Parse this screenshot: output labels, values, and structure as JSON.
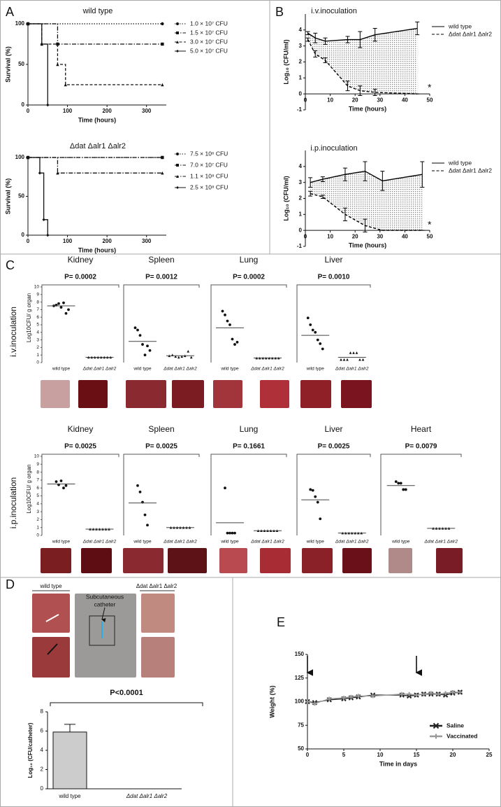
{
  "panel_labels": [
    "A",
    "B",
    "C",
    "D",
    "E"
  ],
  "photo_labels": {
    "left": "wild type",
    "right": "Δdat Δalr1 Δalr2",
    "catheter": [
      "Subcutaneous",
      "catheter"
    ]
  },
  "chart_data": [
    {
      "type": "step",
      "title": "wild type",
      "xlabel": "Time (hours)",
      "ylabel": "Survival (%)",
      "xlim": [
        0,
        350
      ],
      "xticks": [
        0,
        100,
        200,
        300
      ],
      "ylim": [
        0,
        100
      ],
      "yticks": [
        0,
        50,
        100
      ],
      "series": [
        {
          "name": "1.0 × 10⁷ CFU",
          "dash": "dotted",
          "marker": "circle",
          "x": [
            0,
            340
          ],
          "values": [
            100,
            100
          ]
        },
        {
          "name": "1.5 × 10⁷ CFU",
          "dash": "dashdot",
          "marker": "square",
          "x": [
            0,
            75,
            340
          ],
          "values": [
            100,
            75,
            75
          ]
        },
        {
          "name": "3.0 × 10⁷ CFU",
          "dash": "dashed",
          "marker": "triangle",
          "x": [
            0,
            35,
            75,
            95,
            340
          ],
          "values": [
            100,
            75,
            50,
            25,
            25
          ]
        },
        {
          "name": "5.0 × 10⁷ CFU",
          "dash": "solid",
          "marker": "diamond",
          "x": [
            0,
            35,
            50
          ],
          "values": [
            100,
            75,
            0
          ]
        }
      ]
    },
    {
      "type": "step",
      "title": "Δdat Δalr1 Δalr2",
      "xlabel": "Time (hours)",
      "ylabel": "Survival (%)",
      "xlim": [
        0,
        350
      ],
      "xticks": [
        0,
        100,
        200,
        300
      ],
      "ylim": [
        0,
        100
      ],
      "yticks": [
        0,
        50,
        100
      ],
      "series": [
        {
          "name": "7.5 × 10⁶ CFU",
          "dash": "dotted",
          "marker": "circle",
          "x": [
            0,
            340
          ],
          "values": [
            100,
            100
          ]
        },
        {
          "name": "7.0 × 10⁷ CFU",
          "dash": "dashdot",
          "marker": "square",
          "x": [
            0,
            340
          ],
          "values": [
            100,
            100
          ]
        },
        {
          "name": "1.1 × 10⁸ CFU",
          "dash": "dashdot",
          "marker": "triangle",
          "x": [
            0,
            75,
            340
          ],
          "values": [
            100,
            80,
            80
          ]
        },
        {
          "name": "2.5 × 10⁸ CFU",
          "dash": "solid",
          "marker": "diamond",
          "x": [
            0,
            30,
            40,
            50
          ],
          "values": [
            100,
            80,
            20,
            0
          ]
        }
      ]
    },
    {
      "type": "line",
      "title": "i.v.inoculation",
      "xlabel": "Time (hours)",
      "ylabel": "Log₁₀ (CFU/ml)",
      "annotation": "*",
      "fill_between": true,
      "xlim": [
        0,
        50
      ],
      "xticks": [
        0,
        10,
        20,
        30,
        40,
        50
      ],
      "ylim": [
        -1,
        5
      ],
      "yticks": [
        -1,
        0,
        1,
        2,
        3,
        4
      ],
      "x": [
        1,
        4,
        8,
        17,
        22,
        28,
        45
      ],
      "series": [
        {
          "name": "wild type",
          "color": "#000000",
          "dash": "solid",
          "values": [
            3.8,
            3.5,
            3.3,
            3.4,
            3.4,
            3.7,
            4.1
          ],
          "errors": [
            0.1,
            0.3,
            0.2,
            0.2,
            0.5,
            0.4,
            0.4
          ]
        },
        {
          "name": "Δdat Δalr1 Δalr2",
          "color": "#000000",
          "dash": "dashed",
          "values": [
            3.4,
            2.5,
            2.1,
            0.5,
            0.2,
            0.1,
            0
          ],
          "errors": [
            0.1,
            0.2,
            0.15,
            0.3,
            0.3,
            0.2,
            0
          ]
        }
      ]
    },
    {
      "type": "line",
      "title": "i.p.inoculation",
      "xlabel": "Time (hours)",
      "ylabel": "Log₁₀ (CFU/ml)",
      "annotation": "*",
      "fill_between": true,
      "xlim": [
        0,
        50
      ],
      "xticks": [
        0,
        10,
        20,
        30,
        40,
        50
      ],
      "ylim": [
        -1,
        5
      ],
      "yticks": [
        -1,
        0,
        1,
        2,
        3,
        4
      ],
      "x": [
        2,
        7,
        16,
        24,
        31,
        47
      ],
      "series": [
        {
          "name": "wild type",
          "color": "#000000",
          "dash": "solid",
          "values": [
            3.0,
            3.2,
            3.5,
            3.7,
            3.1,
            3.5
          ],
          "errors": [
            0.3,
            0.15,
            0.4,
            0.6,
            0.6,
            0.8
          ]
        },
        {
          "name": "Δdat Δalr1 Δalr2",
          "color": "#000000",
          "dash": "dashed",
          "values": [
            2.3,
            2.1,
            1.0,
            0.3,
            0,
            0
          ],
          "errors": [
            0.15,
            0.1,
            0.4,
            0.4,
            0,
            0
          ]
        }
      ]
    },
    {
      "type": "dot",
      "title": "Kidney",
      "annotation": "P= 0.0002",
      "row_label": "i.v.inoculation",
      "ylabel": "Log10CFU/ g organ",
      "ylim": [
        0,
        10
      ],
      "yticks": [
        0,
        1,
        2,
        3,
        4,
        5,
        6,
        7,
        8,
        9,
        10
      ],
      "categories": [
        "wild type",
        "Δdat Δalr1 Δalr2"
      ],
      "values": [
        [
          7.5,
          7.6,
          7.8,
          7.3,
          7.9,
          6.5,
          7.0
        ],
        [
          0.7,
          0.7,
          0.7,
          0.7,
          0.7,
          0.7,
          0.7,
          0.7
        ]
      ],
      "means": [
        7.5,
        0.7
      ]
    },
    {
      "type": "dot",
      "title": "Spleen",
      "annotation": "P= 0.0012",
      "ylim": [
        0,
        10
      ],
      "categories": [
        "wild type",
        "Δdat Δalr1 Δalr2"
      ],
      "values": [
        [
          4.6,
          4.3,
          3.6,
          2.4,
          1.0,
          2.2,
          1.6
        ],
        [
          0.9,
          1.0,
          0.8,
          0.7,
          0.8,
          0.9,
          1.5,
          0.7
        ]
      ],
      "means": [
        2.8,
        0.9
      ]
    },
    {
      "type": "dot",
      "title": "Lung",
      "annotation": "P= 0.0002",
      "ylim": [
        0,
        10
      ],
      "categories": [
        "wild type",
        "Δdat Δalr1 Δalr2"
      ],
      "values": [
        [
          6.8,
          6.3,
          5.5,
          5.0,
          3.1,
          2.4,
          2.7
        ],
        [
          0.6,
          0.6,
          0.6,
          0.6,
          0.6,
          0.6,
          0.6,
          0.6
        ]
      ],
      "means": [
        4.6,
        0.6
      ]
    },
    {
      "type": "dot",
      "title": "Liver",
      "annotation": "P= 0.0010",
      "ylim": [
        0,
        10
      ],
      "categories": [
        "wild type",
        "Δdat Δalr1 Δalr2"
      ],
      "values": [
        [
          5.9,
          5.0,
          4.3,
          4.0,
          3.0,
          2.5,
          1.8
        ],
        [
          0.4,
          0.4,
          0.4,
          1.3,
          1.3,
          1.3,
          0.4,
          0.4
        ]
      ],
      "means": [
        3.6,
        0.7
      ]
    },
    {
      "type": "dot",
      "title": "Kidney",
      "annotation": "P= 0.0025",
      "row_label": "i.p.inoculation",
      "ylabel": "Log10CFU/ g organ",
      "ylim": [
        0,
        10
      ],
      "yticks": [
        0,
        1,
        2,
        3,
        4,
        5,
        6,
        7,
        8,
        9,
        10
      ],
      "categories": [
        "wild type",
        "Δdat Δalr1 Δalr2"
      ],
      "values": [
        [
          6.8,
          6.4,
          6.9,
          6.0,
          6.3
        ],
        [
          0.8,
          0.8,
          0.8,
          0.8,
          0.8,
          0.8,
          0.8
        ]
      ],
      "means": [
        6.5,
        0.8
      ]
    },
    {
      "type": "dot",
      "title": "Spleen",
      "annotation": "P= 0.0025",
      "ylim": [
        0,
        10
      ],
      "categories": [
        "wild type",
        "Δdat Δalr1 Δalr2"
      ],
      "values": [
        [
          6.3,
          5.5,
          4.2,
          2.6,
          1.3
        ],
        [
          1.0,
          1.0,
          1.0,
          1.0,
          1.0,
          1.0,
          1.0
        ]
      ],
      "means": [
        4.1,
        1.0
      ]
    },
    {
      "type": "dot",
      "title": "Lung",
      "annotation": "P= 0.1661",
      "ylim": [
        0,
        10
      ],
      "categories": [
        "wild type",
        "Δdat Δalr1 Δalr2"
      ],
      "values": [
        [
          6.0,
          0.3,
          0.3,
          0.3,
          0.3
        ],
        [
          0.6,
          0.6,
          0.6,
          0.6,
          0.6,
          0.6,
          0.6
        ]
      ],
      "means": [
        1.6,
        0.6
      ]
    },
    {
      "type": "dot",
      "title": "Liver",
      "annotation": "P= 0.0025",
      "ylim": [
        0,
        10
      ],
      "categories": [
        "wild type",
        "Δdat Δalr1 Δalr2"
      ],
      "values": [
        [
          5.8,
          5.7,
          4.9,
          4.2,
          2.1
        ],
        [
          0.3,
          0.3,
          0.3,
          0.3,
          0.3,
          0.3,
          0.3
        ]
      ],
      "means": [
        4.5,
        0.3
      ]
    },
    {
      "type": "dot",
      "title": "Heart",
      "annotation": "P= 0.0079",
      "ylim": [
        0,
        10
      ],
      "categories": [
        "wild type",
        "Δdat Δalr1 Δalr2"
      ],
      "values": [
        [
          6.8,
          6.6,
          6.6,
          5.8,
          5.8
        ],
        [
          0.9,
          0.9,
          0.9,
          0.9,
          0.9,
          0.9
        ]
      ],
      "means": [
        6.3,
        0.9
      ]
    },
    {
      "type": "bar",
      "annotation": "P<0.0001",
      "ylabel": "Log₁₀ (CFU/catheter)",
      "color": "#cccccc",
      "ylim": [
        0,
        8
      ],
      "yticks": [
        0,
        2,
        4,
        6,
        8
      ],
      "categories": [
        "wild type",
        "Δdat Δalr1 Δalr2"
      ],
      "values": [
        5.9,
        0
      ],
      "errors": [
        0.8,
        0
      ]
    },
    {
      "type": "line",
      "xlabel": "Time in days",
      "ylabel": "Weight (%)",
      "legend": "lower right",
      "arrows_x": [
        0,
        15
      ],
      "xlim": [
        0,
        25
      ],
      "xticks": [
        0,
        5,
        10,
        15,
        20,
        25
      ],
      "ylim": [
        50,
        150
      ],
      "yticks": [
        50,
        75,
        100,
        125,
        150
      ],
      "x": [
        0,
        1,
        3,
        5,
        6,
        7,
        9,
        13,
        14,
        15,
        16,
        17,
        18,
        19,
        20,
        21
      ],
      "series": [
        {
          "name": "Saline",
          "color": "#222222",
          "dash": "solid",
          "marker": "x",
          "values": [
            100,
            99,
            102,
            103,
            104,
            105,
            107,
            107,
            106,
            107,
            108,
            108,
            108,
            107,
            109,
            110
          ]
        },
        {
          "name": "Vaccinated",
          "color": "#999999",
          "dash": "solid",
          "marker": "plus",
          "values": [
            100,
            98,
            103,
            104,
            105,
            106,
            106,
            108,
            108,
            107,
            108,
            109,
            108,
            109,
            110,
            110
          ]
        }
      ]
    }
  ]
}
